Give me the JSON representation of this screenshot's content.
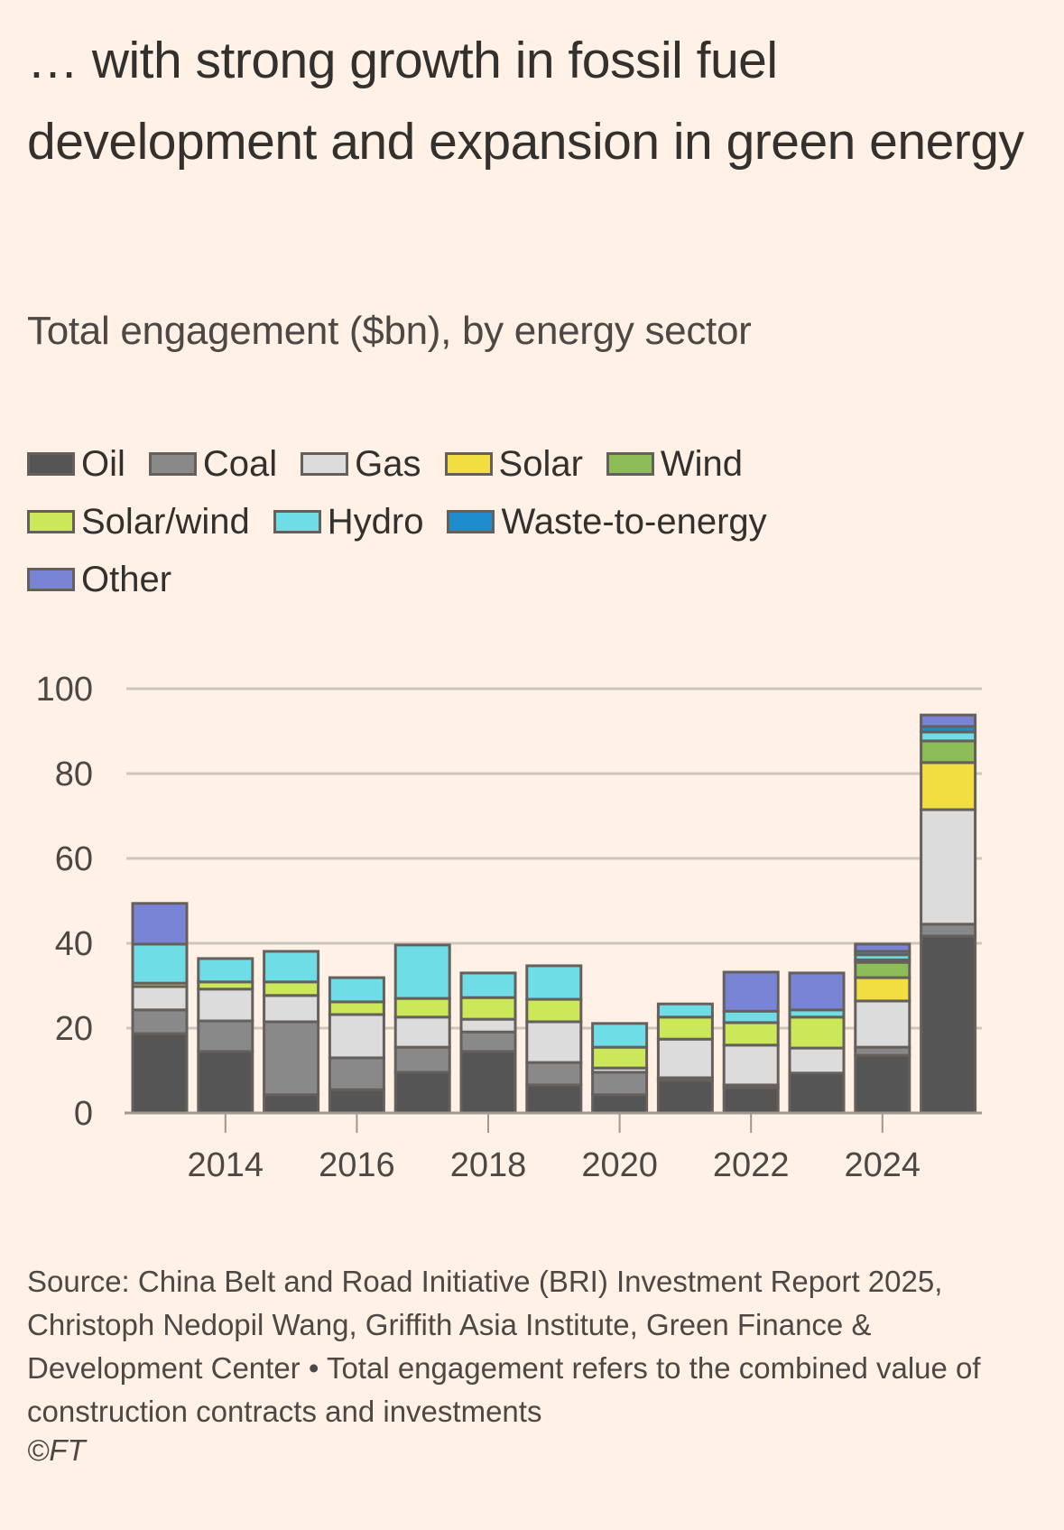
{
  "title": "… with strong growth in fossil fuel development and expansion in green energy",
  "subtitle": "Total engagement ($bn), by energy sector",
  "source": "Source: China Belt and Road Initiative (BRI) Investment Report 2025, Christoph Nedopil Wang, Griffith Asia Institute, Green Finance & Development Center • Total engagement refers to the combined value of construction contracts and investments",
  "copyright": "©FT",
  "chart_data": {
    "type": "bar",
    "stacked": true,
    "title": "Total engagement ($bn), by energy sector",
    "xlabel": "",
    "ylabel": "",
    "ylim": [
      0,
      100
    ],
    "yticks": [
      0,
      20,
      40,
      60,
      80,
      100
    ],
    "xtick_labels": [
      "2014",
      "2016",
      "2018",
      "2020",
      "2022",
      "2024"
    ],
    "grid": true,
    "legend_position": "top",
    "categories": [
      "2013",
      "2014",
      "2015",
      "2016",
      "2017",
      "2018",
      "2019",
      "2020",
      "2021",
      "2022",
      "2023",
      "2024",
      "2025"
    ],
    "series": [
      {
        "name": "Oil",
        "color": "#555555",
        "values": [
          18.7,
          14.5,
          4.3,
          5.5,
          9.6,
          14.5,
          6.6,
          4.3,
          7.7,
          6.0,
          9.4,
          13.6,
          41.7
        ]
      },
      {
        "name": "Coal",
        "color": "#898989",
        "values": [
          5.6,
          7.2,
          17.2,
          7.5,
          5.9,
          4.6,
          5.3,
          5.3,
          0.6,
          0.6,
          0,
          1.9,
          2.8
        ]
      },
      {
        "name": "Gas",
        "color": "#dcdcdc",
        "values": [
          5.5,
          7.5,
          6.2,
          10.2,
          7.1,
          3.0,
          9.6,
          1.0,
          9.1,
          9.4,
          5.9,
          10.9,
          27.0
        ]
      },
      {
        "name": "Solar",
        "color": "#f2de41",
        "values": [
          0,
          0,
          0,
          0,
          0,
          0,
          0,
          0,
          0,
          0,
          0,
          5.5,
          11.1
        ]
      },
      {
        "name": "Wind",
        "color": "#8cbd57",
        "values": [
          0,
          0,
          0,
          0,
          0,
          0,
          0,
          0,
          0,
          0,
          0,
          3.6,
          5.1
        ]
      },
      {
        "name": "Solar/wind",
        "color": "#cbe858",
        "values": [
          0.8,
          1.7,
          3.2,
          3.0,
          4.4,
          5.1,
          5.3,
          4.9,
          5.2,
          5.3,
          7.3,
          0.6,
          0
        ]
      },
      {
        "name": "Hydro",
        "color": "#6fdde6",
        "values": [
          9.2,
          5.5,
          7.2,
          5.7,
          12.6,
          5.8,
          7.9,
          5.6,
          3.1,
          2.7,
          1.7,
          1.2,
          2.1
        ]
      },
      {
        "name": "Waste-to-energy",
        "color": "#1e8dcd",
        "values": [
          0,
          0,
          0,
          0,
          0,
          0,
          0,
          0,
          0,
          0,
          0,
          0.8,
          1.3
        ]
      },
      {
        "name": "Other",
        "color": "#7984d6",
        "values": [
          9.6,
          0,
          0,
          0,
          0,
          0,
          0,
          0,
          0,
          9.2,
          8.7,
          1.7,
          2.7
        ]
      }
    ]
  },
  "legend": [
    {
      "label": "Oil",
      "color": "#555555"
    },
    {
      "label": "Coal",
      "color": "#898989"
    },
    {
      "label": "Gas",
      "color": "#dcdcdc"
    },
    {
      "label": "Solar",
      "color": "#f2de41"
    },
    {
      "label": "Wind",
      "color": "#8cbd57"
    },
    {
      "label": "Solar/wind",
      "color": "#cbe858"
    },
    {
      "label": "Hydro",
      "color": "#6fdde6"
    },
    {
      "label": "Waste-to-energy",
      "color": "#1e8dcd"
    },
    {
      "label": "Other",
      "color": "#7984d6"
    }
  ]
}
